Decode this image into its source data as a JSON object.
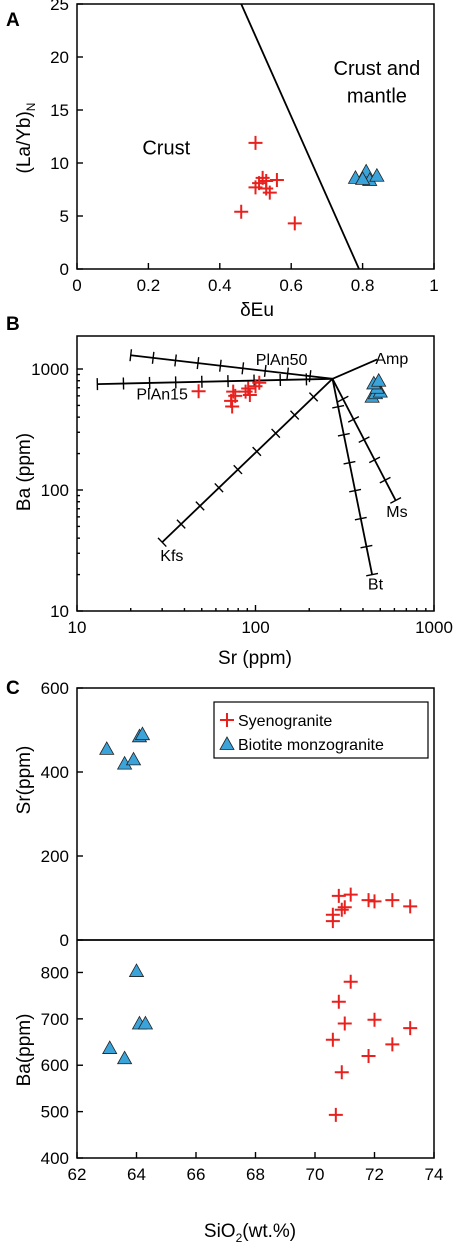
{
  "colors": {
    "syenogranite": "#e8201e",
    "biotite": "#3aa3d9",
    "triangle_edge": "#222222"
  },
  "chart_data": [
    {
      "panel": "A",
      "type": "scatter",
      "xlabel": "δEu",
      "ylabel": "(La/Yb)N",
      "xlim": [
        0,
        1
      ],
      "ylim": [
        0,
        25
      ],
      "xticks": [
        0,
        0.2,
        0.4,
        0.6,
        0.8,
        1
      ],
      "xtick_labels": [
        "0",
        "0.2",
        "0.4",
        "0.6",
        "0.8",
        "1"
      ],
      "yticks": [
        0,
        5,
        10,
        15,
        20,
        25
      ],
      "ytick_labels": [
        "0",
        "5",
        "10",
        "15",
        "20",
        "25"
      ],
      "boundary": [
        [
          0.46,
          25
        ],
        [
          0.79,
          0
        ]
      ],
      "regions": [
        {
          "text": "Crust",
          "x": 0.25,
          "y": 10.8
        },
        {
          "text": "Crust and",
          "x": 0.84,
          "y": 18.3
        },
        {
          "text": "mantle",
          "x": 0.84,
          "y": 15.7
        }
      ],
      "series": [
        {
          "marker": "cross",
          "points": [
            [
              0.5,
              11.9
            ],
            [
              0.52,
              8.6
            ],
            [
              0.51,
              8.1
            ],
            [
              0.53,
              8.3
            ],
            [
              0.53,
              7.6
            ],
            [
              0.5,
              7.7
            ],
            [
              0.56,
              8.4
            ],
            [
              0.54,
              7.2
            ],
            [
              0.46,
              5.4
            ],
            [
              0.61,
              4.3
            ]
          ]
        },
        {
          "marker": "triangle",
          "points": [
            [
              0.78,
              8.6
            ],
            [
              0.81,
              9.2
            ],
            [
              0.82,
              8.4
            ],
            [
              0.84,
              8.8
            ],
            [
              0.8,
              8.5
            ]
          ]
        }
      ]
    },
    {
      "panel": "B",
      "type": "scatter",
      "xlabel": "Sr  (ppm)",
      "ylabel": "Ba  (ppm)",
      "xscale": "log",
      "yscale": "log",
      "xlim": [
        10,
        1000
      ],
      "ylim": [
        10,
        1800
      ],
      "xticks": [
        10,
        100,
        1000
      ],
      "xtick_labels": [
        "10",
        "100",
        "1000"
      ],
      "yticks": [
        10,
        100,
        1000
      ],
      "ytick_labels": [
        "10",
        "100",
        "1000"
      ],
      "origin": [
        270,
        830
      ],
      "vectors": [
        {
          "label": "PlAn15",
          "end": [
            13,
            750
          ],
          "ticks": 9,
          "label_pos": [
            30,
            560
          ]
        },
        {
          "label": "PlAn50",
          "end": [
            20,
            1300
          ],
          "ticks": 9,
          "label_pos": [
            140,
            1080
          ]
        },
        {
          "label": "Kfs",
          "end": [
            30,
            37
          ],
          "ticks": 9,
          "label_pos": [
            34,
            26
          ]
        },
        {
          "label": "Amp",
          "end": [
            480,
            1200
          ],
          "ticks": 0,
          "label_pos": [
            580,
            1100
          ]
        },
        {
          "label": "Ms",
          "end": [
            610,
            82
          ],
          "ticks": 6,
          "label_pos": [
            620,
            60
          ]
        },
        {
          "label": "Bt",
          "end": [
            450,
            20
          ],
          "ticks": 7,
          "label_pos": [
            470,
            15
          ]
        }
      ],
      "series": [
        {
          "marker": "cross",
          "points": [
            [
              48,
              655
            ],
            [
              74,
              490
            ],
            [
              73,
              545
            ],
            [
              77,
              600
            ],
            [
              75,
              650
            ],
            [
              88,
              650
            ],
            [
              91,
              690
            ],
            [
              93,
              610
            ],
            [
              100,
              720
            ],
            [
              105,
              770
            ]
          ]
        },
        {
          "marker": "triangle",
          "points": [
            [
              450,
              590
            ],
            [
              470,
              630
            ],
            [
              500,
              650
            ],
            [
              480,
              700
            ],
            [
              460,
              760
            ],
            [
              490,
              800
            ]
          ]
        }
      ]
    },
    {
      "panel": "C",
      "type": "scatter",
      "xlabel": "SiO2(wt.%)",
      "xlim": [
        62,
        74
      ],
      "xticks": [
        62,
        64,
        66,
        68,
        70,
        72,
        74
      ],
      "xtick_labels": [
        "62",
        "64",
        "66",
        "68",
        "70",
        "72",
        "74"
      ],
      "legend": {
        "placement": "top-right",
        "entries": [
          {
            "marker": "cross",
            "label": "Syenogranite"
          },
          {
            "marker": "triangle",
            "label": "Biotite monzogranite"
          }
        ]
      },
      "subplots": [
        {
          "ylabel": "Sr(ppm)",
          "ylim": [
            0,
            600
          ],
          "yticks": [
            0,
            200,
            400,
            600
          ],
          "ytick_labels": [
            "0",
            "200",
            "400",
            "600"
          ],
          "series": [
            {
              "marker": "cross",
              "points": [
                [
                  70.6,
                  45
                ],
                [
                  70.6,
                  60
                ],
                [
                  70.8,
                  105
                ],
                [
                  70.9,
                  72
                ],
                [
                  71,
                  78
                ],
                [
                  71.2,
                  108
                ],
                [
                  71.8,
                  95
                ],
                [
                  72,
                  92
                ],
                [
                  72.6,
                  95
                ],
                [
                  73.2,
                  80
                ]
              ]
            },
            {
              "marker": "triangle",
              "points": [
                [
                  63,
                  455
                ],
                [
                  63.6,
                  420
                ],
                [
                  63.9,
                  430
                ],
                [
                  64.1,
                  485
                ],
                [
                  64.2,
                  490
                ]
              ]
            }
          ]
        },
        {
          "ylabel": "Ba(ppm)",
          "ylim": [
            400,
            870
          ],
          "yticks": [
            400,
            500,
            600,
            700,
            800
          ],
          "ytick_labels": [
            "400",
            "500",
            "600",
            "700",
            "800"
          ],
          "series": [
            {
              "marker": "cross",
              "points": [
                [
                  70.6,
                  655
                ],
                [
                  70.7,
                  493
                ],
                [
                  70.8,
                  737
                ],
                [
                  70.9,
                  585
                ],
                [
                  71,
                  690
                ],
                [
                  71.2,
                  780
                ],
                [
                  71.8,
                  620
                ],
                [
                  72,
                  698
                ],
                [
                  72.6,
                  645
                ],
                [
                  73.2,
                  680
                ]
              ]
            },
            {
              "marker": "triangle",
              "points": [
                [
                  63.1,
                  637
                ],
                [
                  63.6,
                  615
                ],
                [
                  64,
                  803
                ],
                [
                  64.1,
                  690
                ],
                [
                  64.3,
                  690
                ]
              ]
            }
          ]
        }
      ]
    }
  ]
}
